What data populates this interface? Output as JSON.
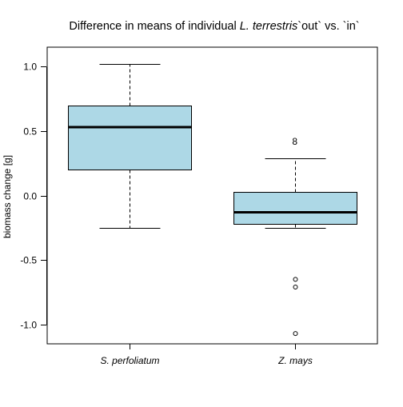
{
  "chart_data": {
    "type": "boxplot",
    "title": {
      "before": "Difference in means of individual ",
      "italic": "L. terrestris",
      "after": "`out` vs. `in`"
    },
    "xlabel": "",
    "ylabel": "biomass change [g]",
    "ylim": [
      -1.15,
      1.15
    ],
    "yticks": [
      1.0,
      0.5,
      0.0,
      -0.5,
      -1.0
    ],
    "ytick_labels": [
      "1.0",
      "0.5",
      "0.0",
      "-0.5",
      "-1.0"
    ],
    "grid": false,
    "legend": "none",
    "colors": {
      "box_fill": "#add8e6",
      "stroke": "#000000"
    },
    "categories": [
      "S. perfoliatum",
      "Z. mays"
    ],
    "boxes": [
      {
        "category": "S. perfoliatum",
        "whisker_low": -0.25,
        "q1": 0.2,
        "median": 0.53,
        "q3": 0.7,
        "whisker_high": 1.02,
        "outliers": []
      },
      {
        "category": "Z. mays",
        "whisker_low": -0.25,
        "q1": -0.22,
        "median": -0.13,
        "q3": 0.03,
        "whisker_high": 0.29,
        "outliers": [
          -0.65,
          -0.71,
          -1.07
        ]
      }
    ],
    "annotations": [
      {
        "text": "8",
        "x": "Z. mays",
        "y": 0.42
      }
    ]
  }
}
